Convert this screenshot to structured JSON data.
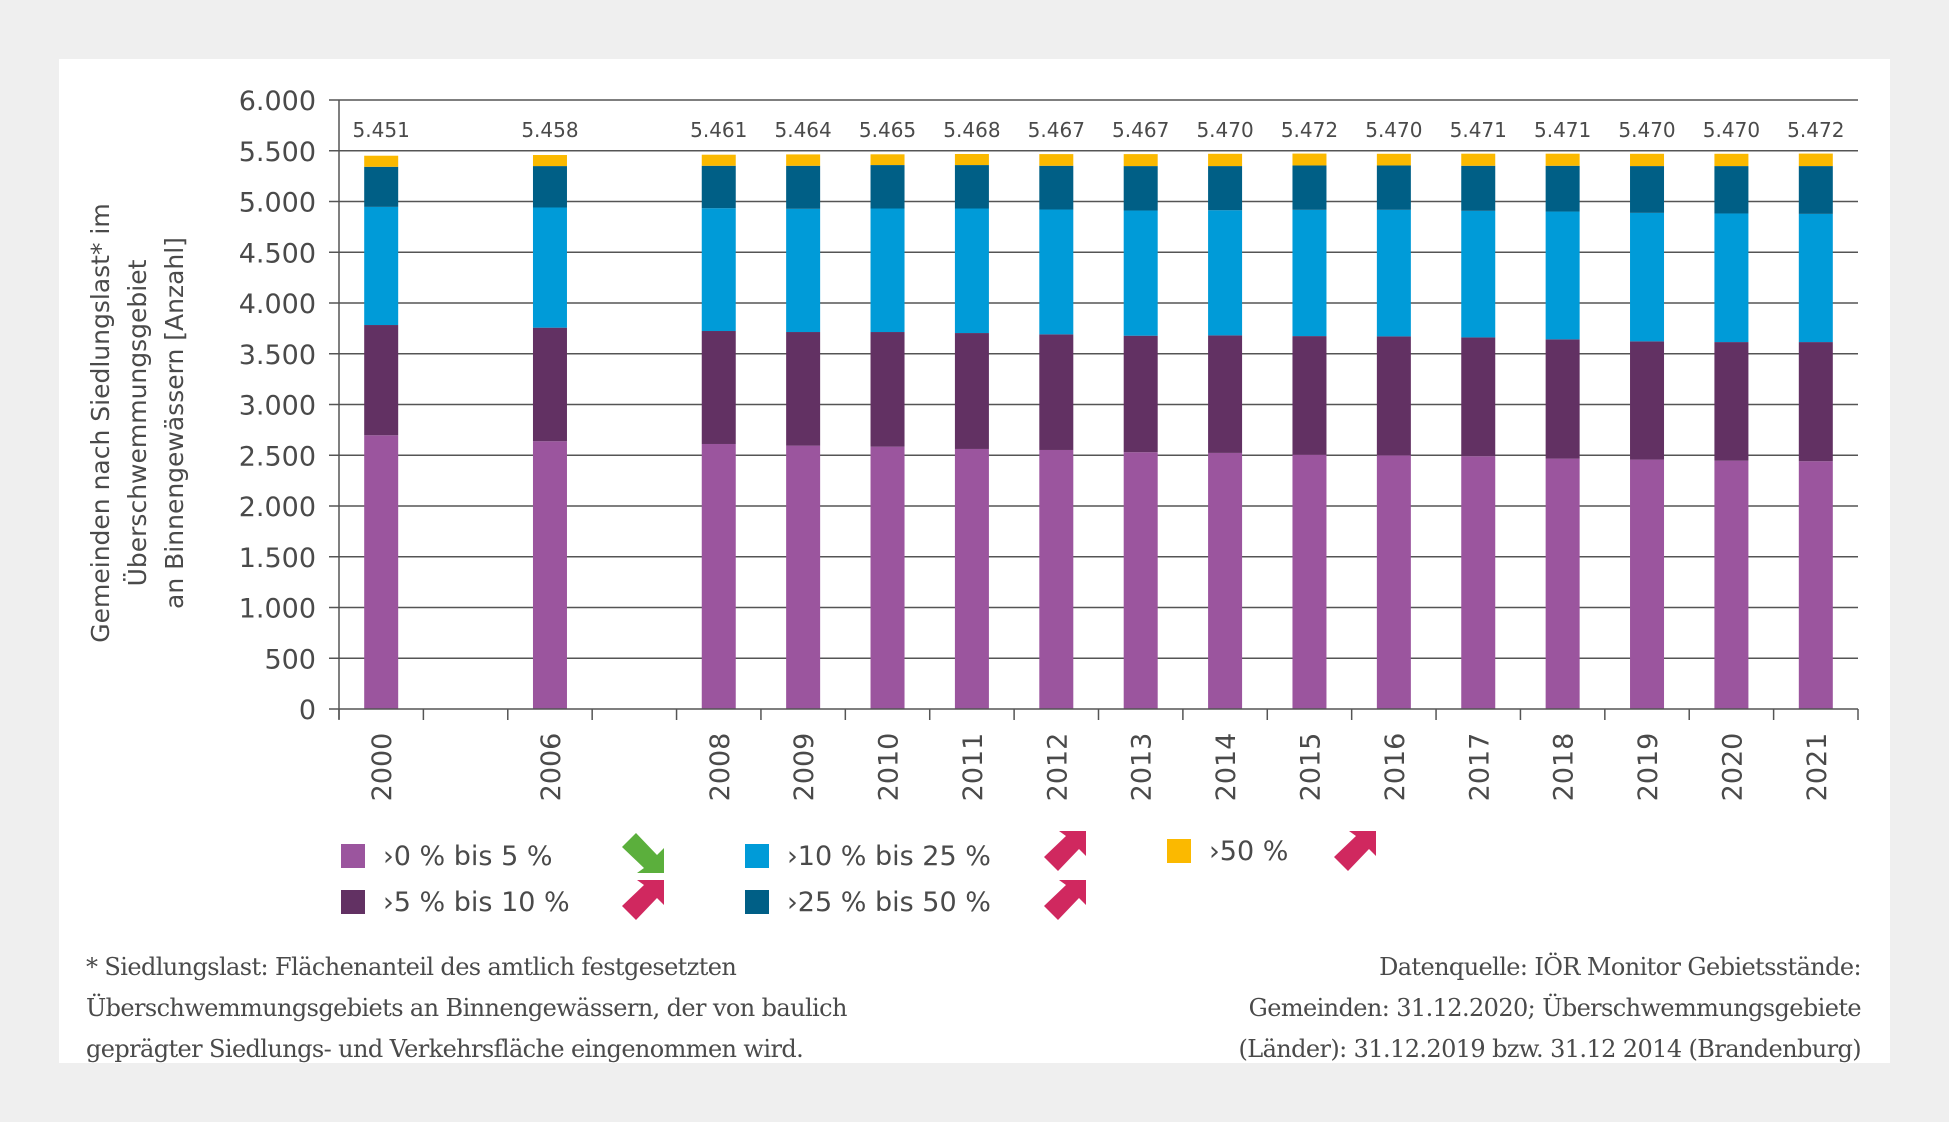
{
  "chart_data": {
    "type": "bar",
    "stacked": true,
    "title": "",
    "xlabel": "",
    "ylabel": "Gemeinden nach Siedlungslast* im Überschwemmungsgebiet an Binnengewässern [Anzahl]",
    "ylabel_lines": [
      "Gemeinden nach Siedlungslast* im",
      "Überschwemmungsgebiet",
      "an Binnengewässern  [Anzahl]"
    ],
    "ylim": [
      0,
      6000
    ],
    "yticks": [
      0,
      500,
      1000,
      1500,
      2000,
      2500,
      3000,
      3500,
      4000,
      4500,
      5000,
      5500,
      6000
    ],
    "ytick_labels": [
      "0",
      "500",
      "1.000",
      "1.500",
      "2.000",
      "2.500",
      "3.000",
      "3.500",
      "4.000",
      "4.500",
      "5.000",
      "5.500",
      "6.000"
    ],
    "grid": true,
    "categories": [
      "2000",
      "",
      "2006",
      "",
      "2008",
      "2009",
      "2010",
      "2011",
      "2012",
      "2013",
      "2014",
      "2015",
      "2016",
      "2017",
      "2018",
      "2019",
      "2020",
      "2021"
    ],
    "totals": [
      5451,
      null,
      5458,
      null,
      5461,
      5464,
      5465,
      5468,
      5467,
      5467,
      5470,
      5472,
      5470,
      5471,
      5471,
      5470,
      5470,
      5472
    ],
    "total_labels": [
      "5.451",
      "",
      "5.458",
      "",
      "5.461",
      "5.464",
      "5.465",
      "5.468",
      "5.467",
      "5.467",
      "5.470",
      "5.472",
      "5.470",
      "5.471",
      "5.471",
      "5.470",
      "5.470",
      "5.472"
    ],
    "series": [
      {
        "name": "›0 % bis 5 %",
        "color": "#9b559e",
        "trend": "down",
        "values": [
          2697,
          null,
          2638,
          null,
          2611,
          2595,
          2585,
          2562,
          2552,
          2530,
          2523,
          2506,
          2500,
          2490,
          2467,
          2457,
          2447,
          2441
        ]
      },
      {
        "name": "›5 % bis 10 %",
        "color": "#623163",
        "trend": "up",
        "values": [
          1086,
          null,
          1119,
          null,
          1113,
          1119,
          1129,
          1142,
          1139,
          1148,
          1158,
          1168,
          1171,
          1171,
          1175,
          1165,
          1168,
          1174
        ]
      },
      {
        "name": "›10 % bis 25 %",
        "color": "#009bd8",
        "trend": "up",
        "values": [
          1164,
          null,
          1184,
          null,
          1210,
          1214,
          1217,
          1227,
          1230,
          1233,
          1233,
          1244,
          1247,
          1247,
          1259,
          1266,
          1267,
          1263
        ]
      },
      {
        "name": "›25 % bis 50 %",
        "color": "#005f86",
        "trend": "up",
        "values": [
          395,
          null,
          408,
          null,
          418,
          424,
          428,
          428,
          431,
          438,
          435,
          437,
          437,
          444,
          451,
          461,
          467,
          471
        ]
      },
      {
        "name": "›50 %",
        "color": "#fbb900",
        "trend": "up",
        "values": [
          109,
          null,
          109,
          null,
          109,
          112,
          106,
          109,
          115,
          118,
          121,
          117,
          115,
          119,
          119,
          121,
          121,
          123
        ]
      }
    ],
    "legend_position": "bottom"
  },
  "trend_colors": {
    "up": "#d0285f",
    "down": "#5baf3c"
  },
  "footnote": {
    "left_lines": [
      "* Siedlungslast: Flächenanteil des amtlich festgesetzten",
      "Überschwemmungsgebiets an Binnengewässern, der von baulich",
      "geprägter Siedlungs- und Verkehrsfläche eingenommen wird."
    ],
    "right_lines": [
      "Datenquelle: IÖR Monitor Gebietsstände:",
      "Gemeinden: 31.12.2020; Überschwemmungsgebiete",
      "(Länder): 31.12.2019 bzw. 31.12 2014  (Brandenburg)"
    ]
  }
}
